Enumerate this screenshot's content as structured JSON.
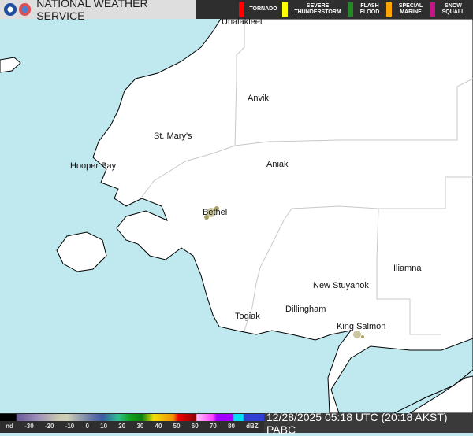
{
  "header": {
    "title": "NATIONAL WEATHER SERVICE",
    "logos": [
      "noaa-logo",
      "nws-logo"
    ]
  },
  "legend": [
    {
      "label": "TORNADO",
      "color": "#ff0000"
    },
    {
      "label": "SEVERE THUNDERSTORM",
      "color": "#ffff00"
    },
    {
      "label": "FLASH FLOOD",
      "color": "#228b22"
    },
    {
      "label": "SPECIAL MARINE",
      "color": "#ffa500"
    },
    {
      "label": "SNOW SQUALL",
      "color": "#c71585"
    }
  ],
  "cities": [
    {
      "name": "Unalakleet"
    },
    {
      "name": "Anvik"
    },
    {
      "name": "St. Mary's"
    },
    {
      "name": "Hooper Bay"
    },
    {
      "name": "Aniak"
    },
    {
      "name": "Bethel"
    },
    {
      "name": "Iliamna"
    },
    {
      "name": "New Stuyahok"
    },
    {
      "name": "Dillingham"
    },
    {
      "name": "Togiak"
    },
    {
      "name": "King Salmon"
    }
  ],
  "scale": {
    "ticks": [
      "nd",
      "-30",
      "-20",
      "-10",
      "0",
      "10",
      "20",
      "30",
      "40",
      "50",
      "60",
      "70",
      "80",
      "dBZ"
    ]
  },
  "timestamp": "12/28/2025 05:18 UTC (20:18 AKST)  PABC",
  "colors": {
    "water": "#bfe8ef",
    "land": "#ffffff",
    "border": "#c8c8c8"
  }
}
